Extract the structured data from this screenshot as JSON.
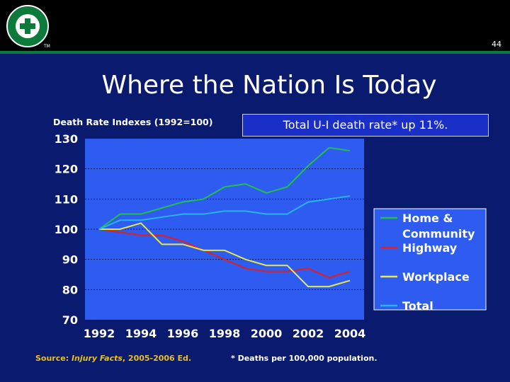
{
  "header": {
    "page_number": "44"
  },
  "slide": {
    "title": "Where the Nation Is Today",
    "note": "Total U-I death rate* up 11%.",
    "footnote": "* Deaths per 100,000 population.",
    "source_prefix": "Source: ",
    "source_italic": "Injury Facts",
    "source_suffix": ", 2005-2006 Ed."
  },
  "colors": {
    "background": "#0a1a6e",
    "plot_bg": "#2e5cf0",
    "home": "#22c04a",
    "total": "#28b4f0",
    "highway": "#e02020",
    "workplace": "#e8e84a"
  },
  "chart_data": {
    "type": "line",
    "title": "Death Rate Indexes (1992=100)",
    "x": [
      1992,
      1993,
      1994,
      1995,
      1996,
      1997,
      1998,
      1999,
      2000,
      2001,
      2002,
      2003,
      2004
    ],
    "x_ticks": [
      "1992",
      "1994",
      "1996",
      "1998",
      "2000",
      "2002",
      "2004"
    ],
    "y_ticks": [
      "130",
      "120",
      "110",
      "100",
      "90",
      "80",
      "70"
    ],
    "ylim": [
      70,
      130
    ],
    "grid": "horizontal dotted",
    "legend_position": "right",
    "series": [
      {
        "name": "Home & Community",
        "color_key": "home",
        "values": [
          100,
          105,
          105,
          107,
          109,
          110,
          114,
          115,
          112,
          114,
          121,
          127,
          126
        ]
      },
      {
        "name": "Highway",
        "color_key": "highway",
        "values": [
          100,
          99,
          98,
          98,
          96,
          93,
          90,
          87,
          86,
          86,
          87,
          84,
          86
        ]
      },
      {
        "name": "Workplace",
        "color_key": "workplace",
        "values": [
          100,
          100,
          102,
          95,
          95,
          93,
          93,
          90,
          88,
          88,
          81,
          81,
          83
        ]
      },
      {
        "name": "Total",
        "color_key": "total",
        "values": [
          100,
          103,
          103,
          104,
          105,
          105,
          106,
          106,
          105,
          105,
          109,
          110,
          111
        ]
      }
    ],
    "legend": [
      "Home &",
      "Community",
      "Highway",
      "Workplace",
      "Total"
    ]
  }
}
